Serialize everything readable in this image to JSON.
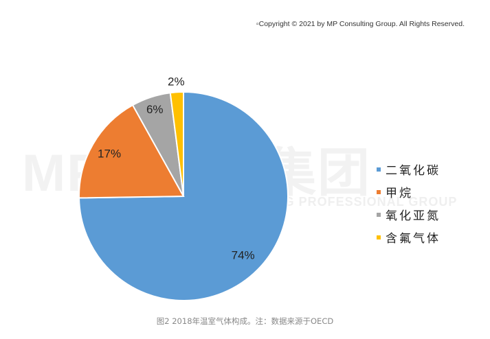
{
  "copyright": "▫Copyright © 2021 by MP Consulting Group. All Rights Reserved.",
  "watermark": {
    "main": "MP大咨询集团",
    "sub": "NSULTING PROFESSIONAL GROUP"
  },
  "colors": {
    "二氧化碳": "#5b9bd5",
    "甲烷": "#ed7d31",
    "氧化亚氮": "#a5a5a5",
    "含氟气体": "#ffc000"
  },
  "chart_data": {
    "type": "pie",
    "title": "",
    "categories": [
      "二氧化碳",
      "甲烷",
      "氧化亚氮",
      "含氟气体"
    ],
    "values": [
      74,
      17,
      6,
      2
    ],
    "labels": [
      "74%",
      "17%",
      "6%",
      "2%"
    ],
    "legend": "right"
  },
  "caption": "图2  2018年温室气体构成。注：数据来源于OECD"
}
